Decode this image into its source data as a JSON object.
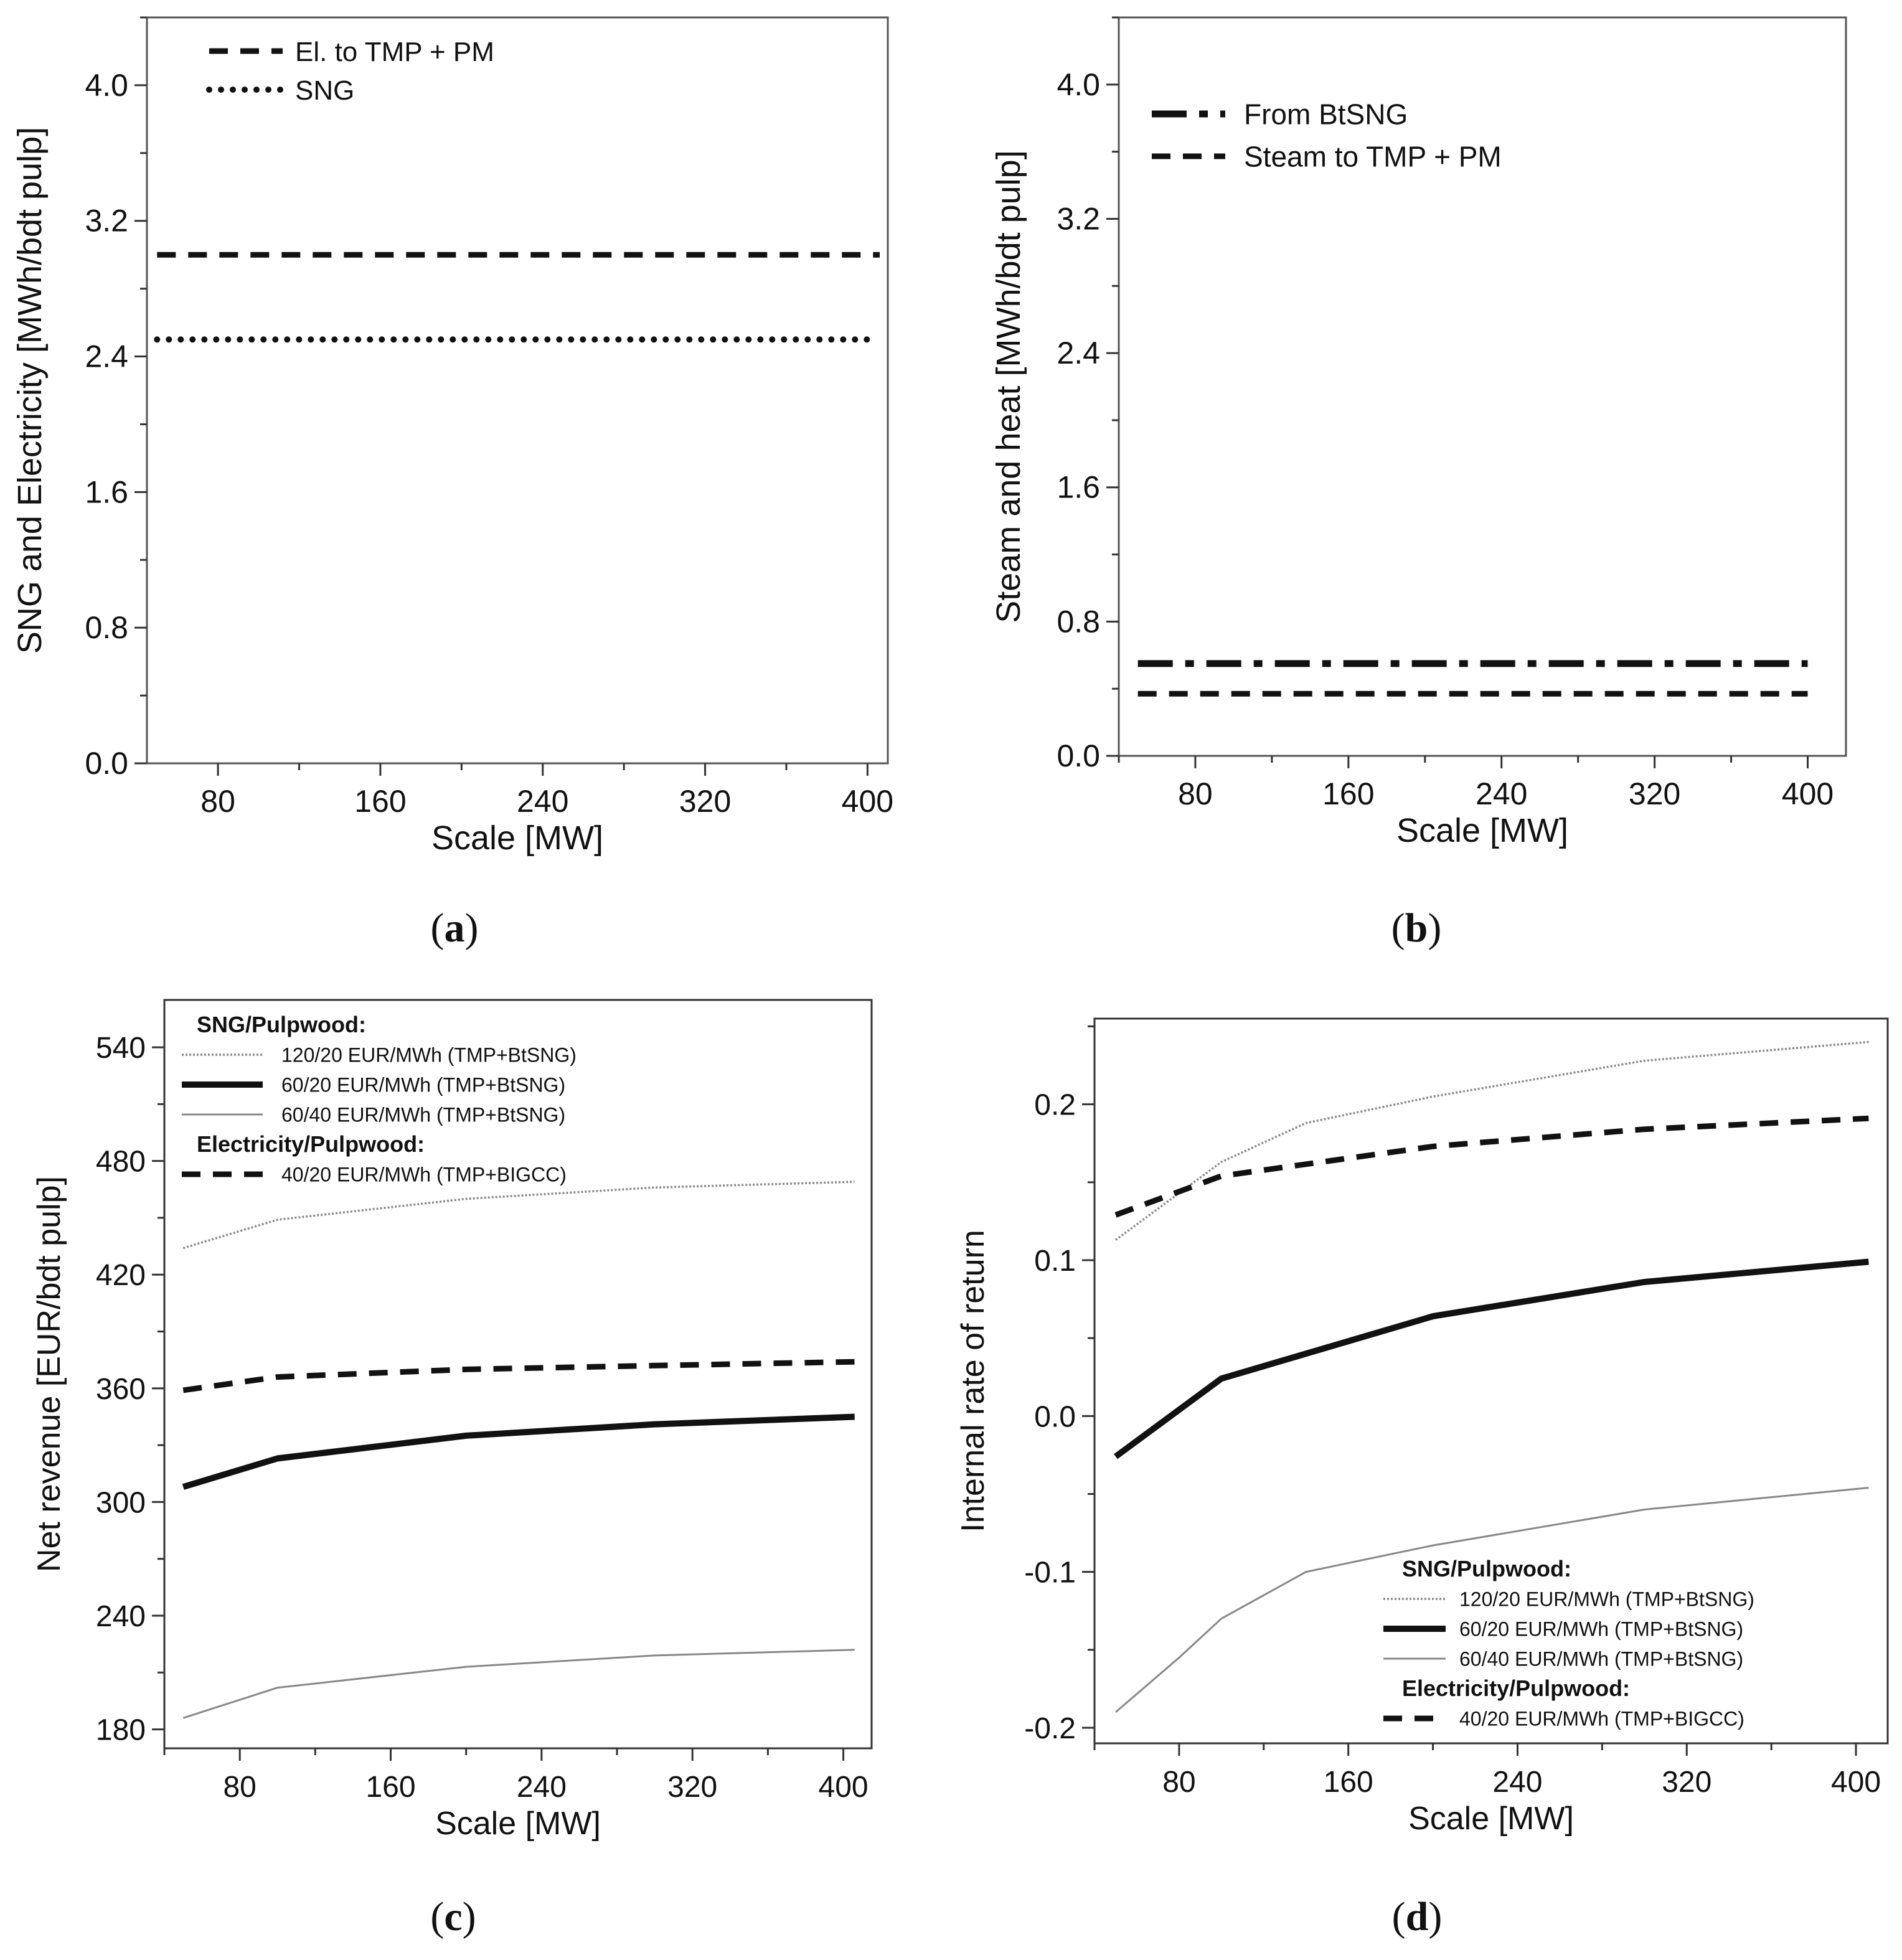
{
  "chart_data": [
    {
      "panel": "a",
      "type": "line",
      "caption_letter": "a",
      "xlabel": "Scale [MW]",
      "ylabel": "SNG and Electricity [MWh/bdt pulp]",
      "xlim": [
        45,
        410
      ],
      "ylim": [
        0.0,
        4.4
      ],
      "xticks": [
        80,
        160,
        240,
        320,
        400
      ],
      "xtick_labels": [
        "80",
        "160",
        "240",
        "320",
        "400"
      ],
      "yticks": [
        0.0,
        0.8,
        1.6,
        2.4,
        3.2,
        4.0
      ],
      "ytick_labels": [
        "0.0",
        "0.8",
        "1.6",
        "2.4",
        "3.2",
        "4.0"
      ],
      "legend": {
        "position": "top-left"
      },
      "series": [
        {
          "name": "El. to TMP + PM",
          "style": "dash",
          "color": "#111111",
          "x": [
            50,
            406
          ],
          "y": [
            3.0,
            3.0
          ]
        },
        {
          "name": "SNG",
          "style": "dot",
          "color": "#111111",
          "x": [
            50,
            400
          ],
          "y": [
            2.5,
            2.5
          ]
        }
      ]
    },
    {
      "panel": "b",
      "type": "line",
      "caption_letter": "b",
      "xlabel": "Scale [MW]",
      "ylabel": "Steam and heat [MWh/bdt pulp]",
      "xlim": [
        40,
        420
      ],
      "ylim": [
        0.0,
        4.4
      ],
      "xticks": [
        80,
        160,
        240,
        320,
        400
      ],
      "xtick_labels": [
        "80",
        "160",
        "240",
        "320",
        "400"
      ],
      "yticks": [
        0.0,
        0.8,
        1.6,
        2.4,
        3.2,
        4.0
      ],
      "ytick_labels": [
        "0.0",
        "0.8",
        "1.6",
        "2.4",
        "3.2",
        "4.0"
      ],
      "legend": {
        "position": "top-left"
      },
      "series": [
        {
          "name": "From BtSNG",
          "style": "dashdot",
          "color": "#111111",
          "x": [
            50,
            400
          ],
          "y": [
            0.55,
            0.55
          ]
        },
        {
          "name": "Steam to TMP + PM",
          "style": "dash",
          "color": "#111111",
          "x": [
            50,
            400
          ],
          "y": [
            0.37,
            0.37
          ]
        }
      ]
    },
    {
      "panel": "c",
      "type": "line",
      "caption_letter": "c",
      "xlabel": "Scale [MW]",
      "ylabel": "Net revenue [EUR/bdt pulp]",
      "xlim": [
        40,
        415
      ],
      "ylim": [
        170,
        565
      ],
      "xticks": [
        80,
        160,
        240,
        320,
        400
      ],
      "xtick_labels": [
        "80",
        "160",
        "240",
        "320",
        "400"
      ],
      "yticks": [
        180,
        240,
        300,
        360,
        420,
        480,
        540
      ],
      "ytick_labels": [
        "180",
        "240",
        "300",
        "360",
        "420",
        "480",
        "540"
      ],
      "legend": {
        "position": "top-left",
        "group1_title": "SNG/Pulpwood:",
        "group2_title": "Electricity/Pulpwood:"
      },
      "series": [
        {
          "name": "120/20 EUR/MWh  (TMP+BtSNG)",
          "style": "thin-dotted",
          "color": "#888888",
          "x": [
            50,
            100,
            200,
            300,
            406
          ],
          "y": [
            434,
            449,
            460,
            466,
            469
          ]
        },
        {
          "name": "60/20 EUR/MWh  (TMP+BtSNG)",
          "style": "thick",
          "color": "#111111",
          "x": [
            50,
            100,
            200,
            300,
            406
          ],
          "y": [
            308,
            323,
            335,
            341,
            345
          ]
        },
        {
          "name": "60/40 EUR/MWh  (TMP+BtSNG)",
          "style": "thin",
          "color": "#888888",
          "x": [
            50,
            100,
            200,
            300,
            406
          ],
          "y": [
            186,
            202,
            213,
            219,
            222
          ]
        },
        {
          "name": "40/20 EUR/MWh  (TMP+BIGCC)",
          "style": "dash",
          "color": "#111111",
          "x": [
            50,
            100,
            200,
            300,
            406
          ],
          "y": [
            359,
            366,
            370,
            372,
            374
          ]
        }
      ]
    },
    {
      "panel": "d",
      "type": "line",
      "caption_letter": "d",
      "xlabel": "Scale [MW]",
      "ylabel": "Internal rate of return",
      "xlim": [
        40,
        415
      ],
      "ylim": [
        -0.21,
        0.255
      ],
      "xticks": [
        80,
        160,
        240,
        320,
        400
      ],
      "xtick_labels": [
        "80",
        "160",
        "240",
        "320",
        "400"
      ],
      "yticks": [
        -0.2,
        -0.1,
        0.0,
        0.1,
        0.2
      ],
      "ytick_labels": [
        "-0.2",
        "-0.1",
        "0.0",
        "0.1",
        "0.2"
      ],
      "legend": {
        "position": "bottom-right",
        "group1_title": "SNG/Pulpwood:",
        "group2_title": "Electricity/Pulpwood:"
      },
      "series": [
        {
          "name": "120/20 EUR/MWh  (TMP+BtSNG)",
          "style": "thin-dotted",
          "color": "#888888",
          "x": [
            50,
            100,
            140,
            200,
            300,
            406
          ],
          "y": [
            0.113,
            0.163,
            0.188,
            0.205,
            0.228,
            0.24
          ]
        },
        {
          "name": "60/20 EUR/MWh  (TMP+BtSNG)",
          "style": "thick",
          "color": "#111111",
          "x": [
            50,
            100,
            200,
            300,
            406
          ],
          "y": [
            -0.026,
            0.024,
            0.064,
            0.086,
            0.099
          ]
        },
        {
          "name": "60/40 EUR/MWh  (TMP+BtSNG)",
          "style": "thin",
          "color": "#888888",
          "x": [
            50,
            80,
            100,
            140,
            200,
            300,
            406
          ],
          "y": [
            -0.19,
            -0.155,
            -0.13,
            -0.1,
            -0.083,
            -0.06,
            -0.046
          ]
        },
        {
          "name": "40/20 EUR/MWh  (TMP+BIGCC)",
          "style": "dash",
          "color": "#111111",
          "x": [
            50,
            100,
            200,
            300,
            406
          ],
          "y": [
            0.129,
            0.154,
            0.173,
            0.184,
            0.191
          ]
        }
      ]
    }
  ]
}
